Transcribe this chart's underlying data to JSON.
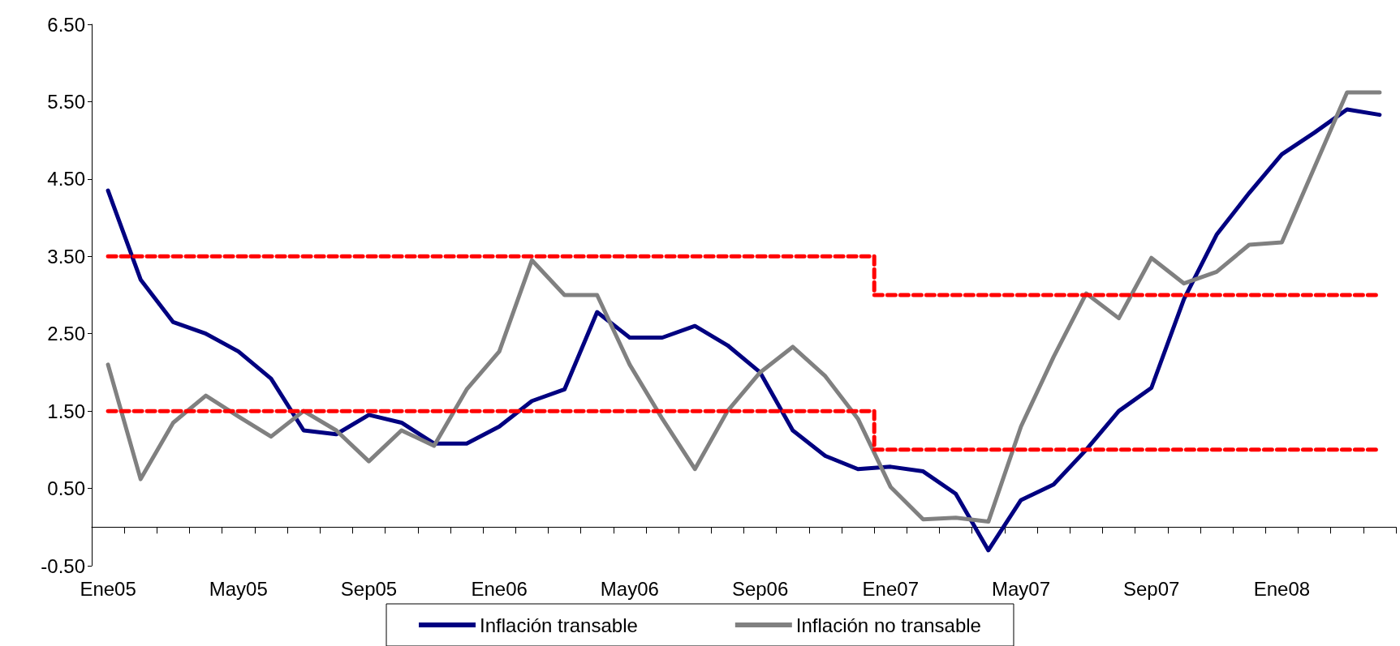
{
  "chart_data": {
    "type": "line",
    "categories": [
      "Ene05",
      null,
      null,
      null,
      "May05",
      null,
      null,
      null,
      "Sep05",
      null,
      null,
      null,
      "Ene06",
      null,
      null,
      null,
      "May06",
      null,
      null,
      null,
      "Sep06",
      null,
      null,
      null,
      "Ene07",
      null,
      null,
      null,
      "May07",
      null,
      null,
      null,
      "Sep07",
      null,
      null,
      null,
      "Ene08",
      null,
      null,
      null
    ],
    "series": [
      {
        "name": "Inflación transable",
        "color": "#000080",
        "values": [
          4.35,
          3.2,
          2.65,
          2.5,
          2.27,
          1.92,
          1.25,
          1.2,
          1.45,
          1.35,
          1.08,
          1.08,
          1.3,
          1.63,
          1.78,
          2.78,
          2.45,
          2.45,
          2.6,
          2.35,
          2.0,
          1.25,
          0.92,
          0.75,
          0.78,
          0.72,
          0.43,
          -0.3,
          0.35,
          0.55,
          1.0,
          1.5,
          1.8,
          2.95,
          3.78,
          4.32,
          4.82,
          5.1,
          5.4,
          5.33
        ]
      },
      {
        "name": "Inflación no transable",
        "color": "#808080",
        "values": [
          2.1,
          0.62,
          1.35,
          1.7,
          1.43,
          1.17,
          1.5,
          1.25,
          0.85,
          1.25,
          1.05,
          1.78,
          2.27,
          3.45,
          3.0,
          3.0,
          2.1,
          1.4,
          0.75,
          1.5,
          2.0,
          2.33,
          1.95,
          1.4,
          0.52,
          0.1,
          0.12,
          0.07,
          1.3,
          2.2,
          3.02,
          2.7,
          3.48,
          3.15,
          3.3,
          3.65,
          3.68,
          4.65,
          5.62,
          5.62
        ]
      },
      {
        "type": "step",
        "color": "#ff0000",
        "line_style": "dashed",
        "values": [
          3.5,
          3.5,
          3.5,
          3.5,
          3.5,
          3.5,
          3.5,
          3.5,
          3.5,
          3.5,
          3.5,
          3.5,
          3.5,
          3.5,
          3.5,
          3.5,
          3.5,
          3.5,
          3.5,
          3.5,
          3.5,
          3.5,
          3.5,
          3.5,
          3.0,
          3.0,
          3.0,
          3.0,
          3.0,
          3.0,
          3.0,
          3.0,
          3.0,
          3.0,
          3.0,
          3.0,
          3.0,
          3.0,
          3.0,
          3.0
        ]
      },
      {
        "type": "step",
        "color": "#ff0000",
        "line_style": "dashed",
        "values": [
          1.5,
          1.5,
          1.5,
          1.5,
          1.5,
          1.5,
          1.5,
          1.5,
          1.5,
          1.5,
          1.5,
          1.5,
          1.5,
          1.5,
          1.5,
          1.5,
          1.5,
          1.5,
          1.5,
          1.5,
          1.5,
          1.5,
          1.5,
          1.5,
          1.0,
          1.0,
          1.0,
          1.0,
          1.0,
          1.0,
          1.0,
          1.0,
          1.0,
          1.0,
          1.0,
          1.0,
          1.0,
          1.0,
          1.0,
          1.0
        ]
      }
    ],
    "ylim": [
      -0.5,
      6.5
    ],
    "yticks": [
      {
        "value": -0.5,
        "label": "-0.50"
      },
      {
        "value": 0.5,
        "label": "0.50"
      },
      {
        "value": 1.5,
        "label": "1.50"
      },
      {
        "value": 2.5,
        "label": "2.50"
      },
      {
        "value": 3.5,
        "label": "3.50"
      },
      {
        "value": 4.5,
        "label": "4.50"
      },
      {
        "value": 5.5,
        "label": "5.50"
      },
      {
        "value": 6.5,
        "label": "6.50"
      }
    ],
    "grid": false,
    "legend": "bottom",
    "marker": "none",
    "line_style": "solid"
  }
}
